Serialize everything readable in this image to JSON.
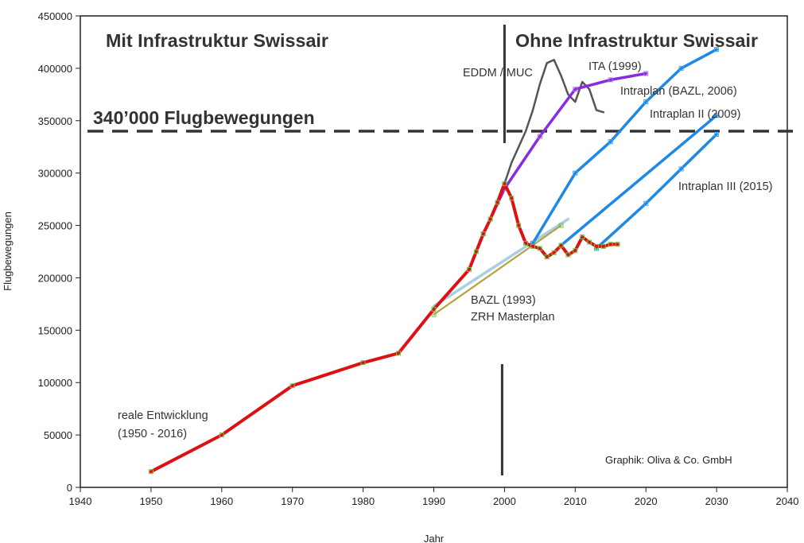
{
  "chart_data": {
    "type": "line",
    "xlabel": "Jahr",
    "ylabel": "Flugbewegungen",
    "xlim": [
      1940,
      2040
    ],
    "ylim": [
      0,
      450000
    ],
    "xticks": [
      1940,
      1950,
      1960,
      1970,
      1980,
      1990,
      2000,
      2010,
      2020,
      2030,
      2040
    ],
    "yticks": [
      0,
      50000,
      100000,
      150000,
      200000,
      250000,
      300000,
      350000,
      400000,
      450000
    ],
    "grid": false,
    "headline_left": "Mit Infrastruktur Swissair",
    "headline_right": "Ohne Infrastruktur Swissair",
    "credit": "Graphik: Oliva & Co. GmbH",
    "reference_line": {
      "y": 340000,
      "label": "340’000 Flugbewegungen"
    },
    "divider_year": 2000,
    "series": [
      {
        "name": "reale Entwicklung",
        "label_lines": [
          "reale Entwicklung",
          "(1950 - 2016)"
        ],
        "color": "#dd1111",
        "x": [
          1950,
          1960,
          1970,
          1980,
          1985,
          1990,
          1995,
          1996,
          1997,
          1998,
          1999,
          2000,
          2001,
          2002,
          2003,
          2004,
          2005,
          2006,
          2007,
          2008,
          2009,
          2010,
          2011,
          2012,
          2013,
          2014,
          2015,
          2016
        ],
        "y": [
          15000,
          50000,
          97000,
          119000,
          128000,
          170000,
          208000,
          225000,
          242000,
          256000,
          272000,
          290000,
          276000,
          250000,
          233000,
          230000,
          228000,
          220000,
          224000,
          231000,
          222000,
          226000,
          239000,
          234000,
          230000,
          230000,
          232000,
          232000
        ]
      },
      {
        "name": "BAZL (1993)",
        "label_lines": [
          "BAZL (1993)",
          "ZRH Masterplan"
        ],
        "color": "#b8a23a",
        "x": [
          1990,
          2008
        ],
        "y": [
          165000,
          250000
        ]
      },
      {
        "name": "ZRH Masterplan",
        "color": "#a9cfe6",
        "x": [
          1990,
          2009
        ],
        "y": [
          173000,
          256000
        ]
      },
      {
        "name": "ITA (1999)",
        "label_lines": [
          "ITA (1999)"
        ],
        "color": "#8a2be2",
        "x": [
          1997,
          2000,
          2005,
          2010,
          2015,
          2020
        ],
        "y": [
          242000,
          285000,
          335000,
          380000,
          389000,
          395000
        ]
      },
      {
        "name": "Intraplan (BAZL, 2006)",
        "label_lines": [
          "Intraplan (BAZL, 2006)"
        ],
        "color": "#1e88e5",
        "x": [
          2004,
          2010,
          2015,
          2020,
          2025,
          2030
        ],
        "y": [
          233000,
          300000,
          330000,
          368000,
          400000,
          418000
        ]
      },
      {
        "name": "Intraplan II (2009)",
        "label_lines": [
          "Intraplan II (2009)"
        ],
        "color": "#1e88e5",
        "x": [
          2008,
          2030
        ],
        "y": [
          231000,
          355000
        ]
      },
      {
        "name": "Intraplan III (2015)",
        "label_lines": [
          "Intraplan III (2015)"
        ],
        "color": "#1e88e5",
        "x": [
          2013,
          2020,
          2025,
          2030
        ],
        "y": [
          228000,
          271000,
          304000,
          337000
        ]
      },
      {
        "name": "EDDM / MUC",
        "label_lines": [
          "EDDM / MUC"
        ],
        "color": "#555555",
        "x": [
          2000,
          2001,
          2002,
          2003,
          2004,
          2005,
          2006,
          2007,
          2008,
          2009,
          2010,
          2011,
          2012,
          2013,
          2014
        ],
        "y": [
          290000,
          310000,
          325000,
          340000,
          360000,
          385000,
          405000,
          408000,
          393000,
          375000,
          368000,
          387000,
          380000,
          360000,
          358000
        ]
      }
    ]
  }
}
